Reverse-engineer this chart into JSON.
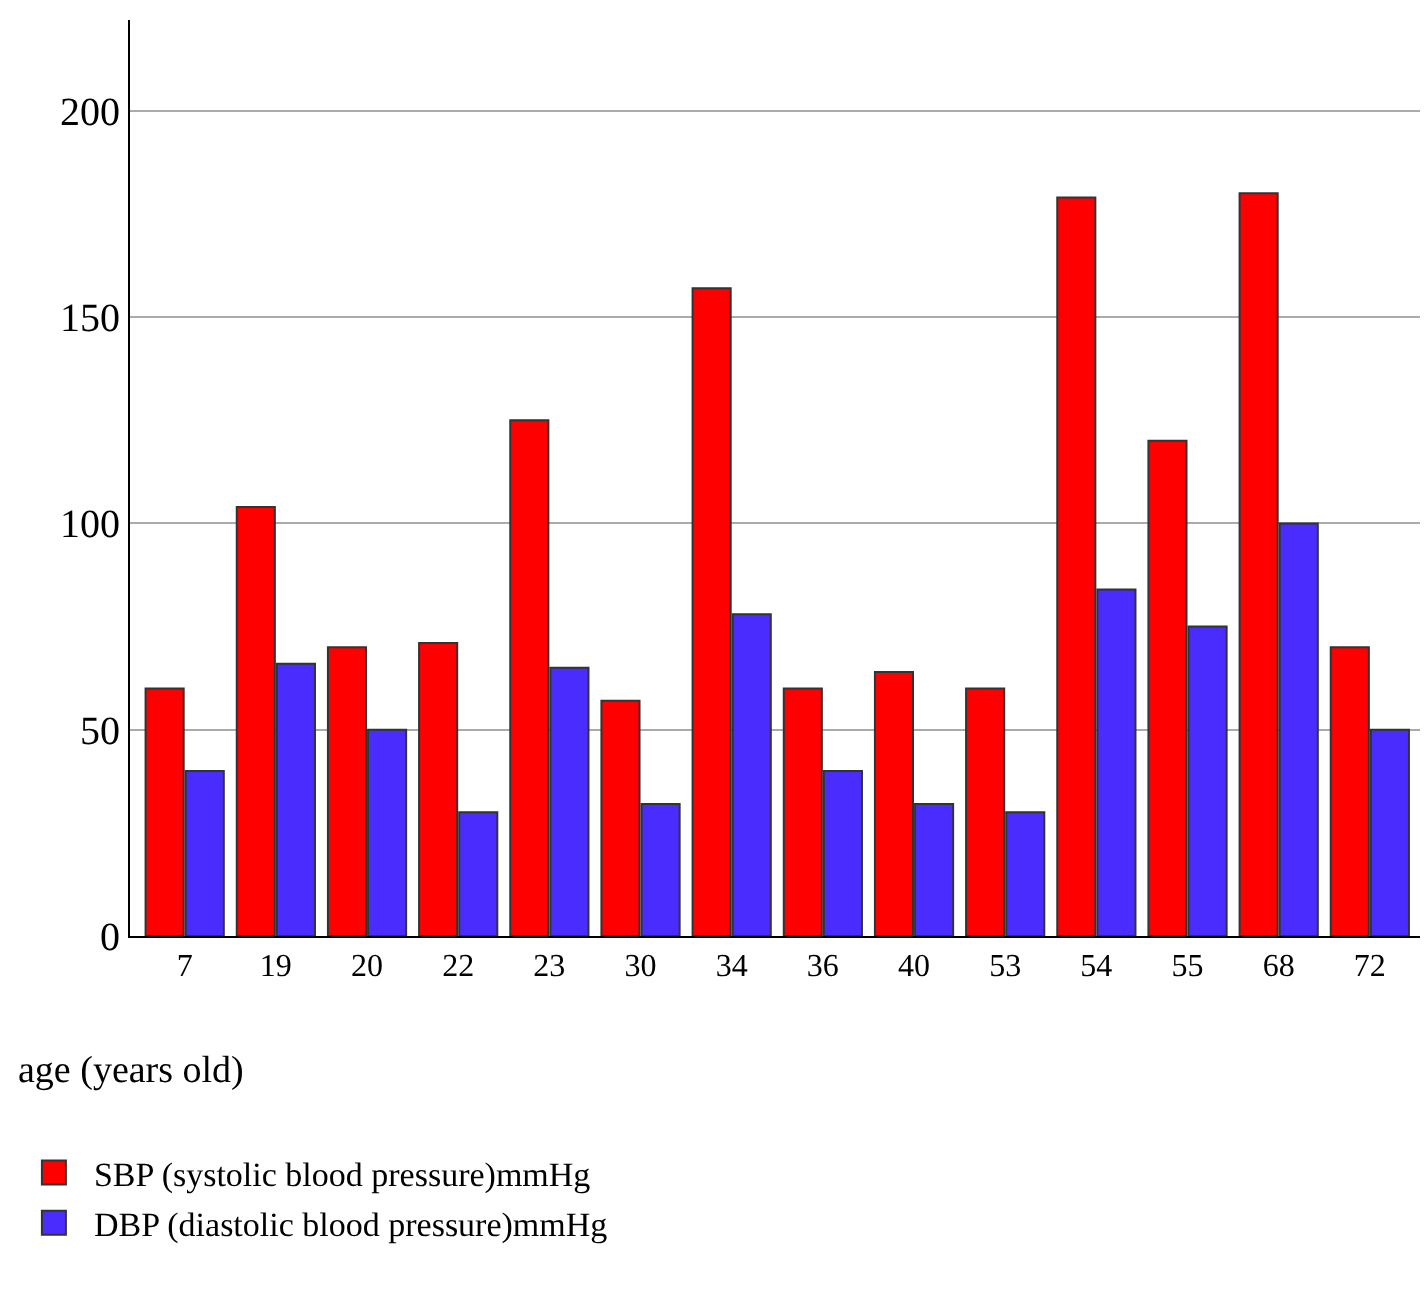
{
  "chart_data": {
    "type": "bar",
    "xlabel": "age (years old)",
    "categories": [
      "7",
      "19",
      "20",
      "22",
      "23",
      "30",
      "34",
      "36",
      "40",
      "53",
      "54",
      "55",
      "68",
      "72"
    ],
    "series": [
      {
        "name": "SBP (systolic blood pressure)mmHg",
        "color": "#ff0000",
        "values": [
          60,
          104,
          70,
          71,
          125,
          57,
          157,
          60,
          64,
          60,
          179,
          120,
          180,
          70
        ]
      },
      {
        "name": "DBP (diastolic blood pressure)mmHg",
        "color": "#4a2cff",
        "values": [
          40,
          66,
          50,
          30,
          65,
          32,
          78,
          40,
          32,
          30,
          84,
          75,
          100,
          50
        ]
      }
    ],
    "ylim": [
      0,
      222
    ],
    "yticks": [
      0,
      50,
      100,
      150,
      200
    ],
    "grid": "y",
    "legend": "bottom left"
  }
}
